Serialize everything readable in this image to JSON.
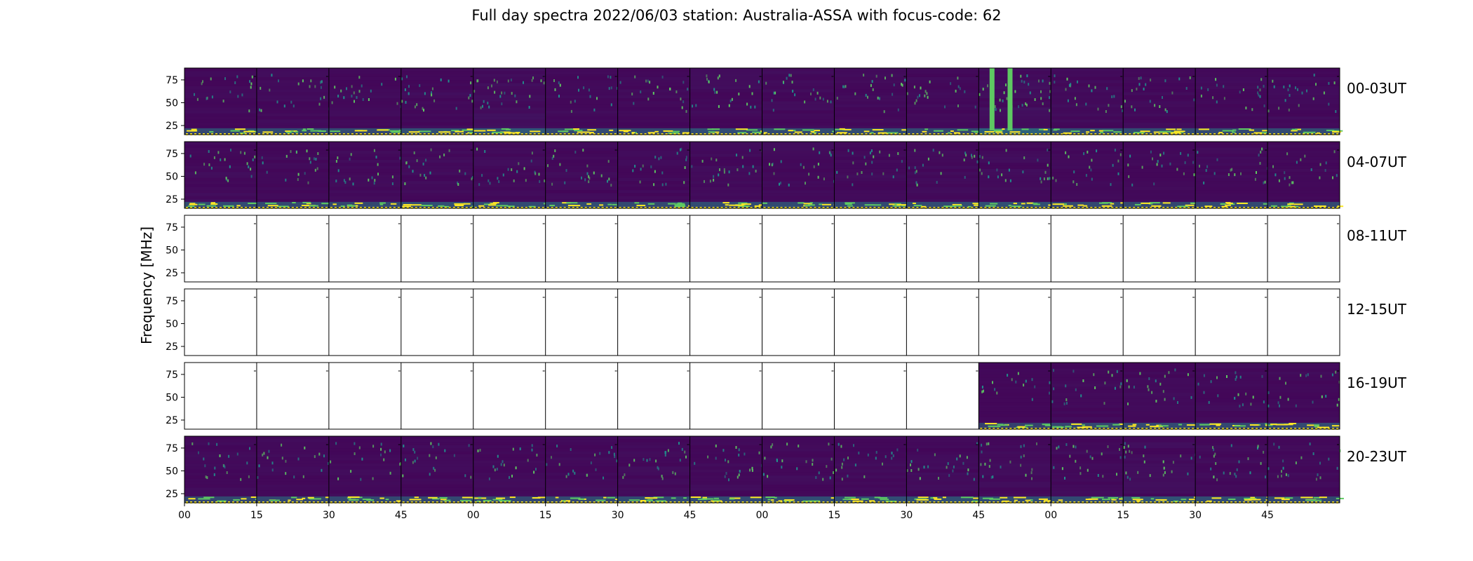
{
  "chart_data": {
    "type": "heatmap",
    "title": "Full day spectra 2022/06/03 station: Australia-ASSA with focus-code: 62",
    "ylabel": "Frequency [MHz]",
    "xlabel": "",
    "yticks": [
      25,
      50,
      75
    ],
    "ylim": [
      15,
      88
    ],
    "xticks": [
      "00",
      "15",
      "30",
      "45",
      "00",
      "15",
      "30",
      "45",
      "00",
      "15",
      "30",
      "45",
      "00",
      "15",
      "30",
      "45"
    ],
    "columns_per_row": 16,
    "colormap": [
      "#440154",
      "#3b528b",
      "#21918c",
      "#5ec962",
      "#fde725"
    ],
    "rows": [
      {
        "label": "00-03UT",
        "panels": [
          1,
          1,
          1,
          1,
          1,
          1,
          1,
          1,
          1,
          1,
          1,
          1,
          1,
          1,
          1,
          1
        ],
        "intensity": [
          0.25,
          0.35,
          0.3,
          0.4,
          0.55,
          0.3,
          0.3,
          0.35,
          0.35,
          0.35,
          0.3,
          0.7,
          0.35,
          0.35,
          0.3,
          0.35
        ]
      },
      {
        "label": "04-07UT",
        "panels": [
          1,
          1,
          1,
          1,
          1,
          1,
          1,
          1,
          1,
          1,
          1,
          1,
          1,
          1,
          1,
          1
        ],
        "intensity": [
          0.35,
          0.3,
          0.3,
          0.4,
          0.35,
          0.35,
          0.3,
          0.35,
          0.35,
          0.35,
          0.35,
          0.4,
          0.3,
          0.3,
          0.3,
          0.3
        ]
      },
      {
        "label": "08-11UT",
        "panels": [
          0,
          0,
          0,
          0,
          0,
          0,
          0,
          0,
          0,
          0,
          0,
          0,
          0,
          0,
          0,
          0
        ],
        "intensity": [
          0,
          0,
          0,
          0,
          0,
          0,
          0,
          0,
          0,
          0,
          0,
          0,
          0,
          0,
          0,
          0
        ]
      },
      {
        "label": "12-15UT",
        "panels": [
          0,
          0,
          0,
          0,
          0,
          0,
          0,
          0,
          0,
          0,
          0,
          0,
          0,
          0,
          0,
          0
        ],
        "intensity": [
          0,
          0,
          0,
          0,
          0,
          0,
          0,
          0,
          0,
          0,
          0,
          0,
          0,
          0,
          0,
          0
        ]
      },
      {
        "label": "16-19UT",
        "panels": [
          0,
          0,
          0,
          0,
          0,
          0,
          0,
          0,
          0,
          0,
          0,
          1,
          1,
          1,
          1,
          1
        ],
        "intensity": [
          0,
          0,
          0,
          0,
          0,
          0,
          0,
          0,
          0,
          0,
          0,
          0.15,
          0.3,
          0.3,
          0.3,
          0.3
        ]
      },
      {
        "label": "20-23UT",
        "panels": [
          1,
          1,
          1,
          1,
          1,
          1,
          1,
          1,
          1,
          1,
          1,
          1,
          1,
          1,
          1,
          1
        ],
        "intensity": [
          0.3,
          0.3,
          0.3,
          0.3,
          0.3,
          0.3,
          0.35,
          0.35,
          0.35,
          0.35,
          0.4,
          0.35,
          0.35,
          0.45,
          0.35,
          0.3
        ]
      }
    ]
  }
}
